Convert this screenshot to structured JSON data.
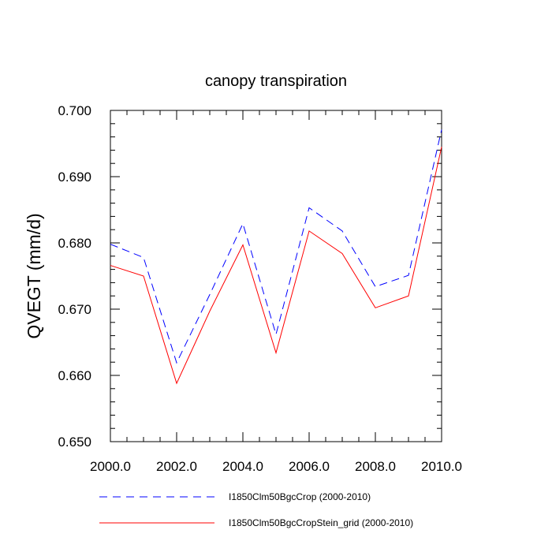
{
  "chart_data": {
    "type": "line",
    "title": "canopy transpiration",
    "xlabel": "",
    "ylabel": "QVEGT  (mm/d)",
    "xlim": [
      2000,
      2010
    ],
    "ylim": [
      0.65,
      0.7
    ],
    "x_ticks": [
      "2000.0",
      "2002.0",
      "2004.0",
      "2006.0",
      "2008.0",
      "2010.0"
    ],
    "y_ticks": [
      "0.650",
      "0.660",
      "0.670",
      "0.680",
      "0.690",
      "0.700"
    ],
    "grid": false,
    "legend_position": "bottom",
    "x": [
      2000,
      2001,
      2002,
      2003,
      2004,
      2005,
      2006,
      2007,
      2008,
      2009,
      2010
    ],
    "series": [
      {
        "name": "I1850Clm50BgcCrop (2000-2010)",
        "color": "#0000ff",
        "style": "dashed",
        "values": [
          0.6798,
          0.6778,
          0.6619,
          0.6722,
          0.6829,
          0.6662,
          0.6853,
          0.6818,
          0.6734,
          0.6751,
          0.6971
        ]
      },
      {
        "name": "I1850Clm50BgcCropStein_grid (2000-2010)",
        "color": "#ff0000",
        "style": "solid",
        "values": [
          0.6766,
          0.675,
          0.6588,
          0.6697,
          0.6797,
          0.6634,
          0.6818,
          0.6784,
          0.6702,
          0.672,
          0.6945
        ]
      }
    ]
  }
}
